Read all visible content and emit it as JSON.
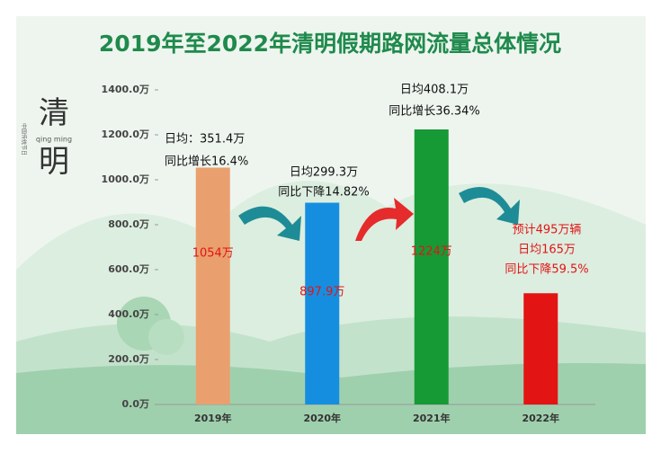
{
  "chart_data": {
    "type": "bar",
    "title": "2019年至2022年清明假期路网流量总体情况",
    "categories": [
      "2019年",
      "2020年",
      "2021年",
      "2022年"
    ],
    "values": [
      1054,
      897.9,
      1224,
      495
    ],
    "value_labels": [
      "1054万",
      "897.9万",
      "1224万",
      null
    ],
    "colors": [
      "#e9a06e",
      "#168ee0",
      "#159a35",
      "#e31414"
    ],
    "ylim": [
      0,
      1400
    ],
    "yticks": [
      {
        "value": 0,
        "label": "0.0万"
      },
      {
        "value": 200,
        "label": "200.0万"
      },
      {
        "value": 400,
        "label": "400.0万"
      },
      {
        "value": 600,
        "label": "600.0万"
      },
      {
        "value": 800,
        "label": "800.0万"
      },
      {
        "value": 1000,
        "label": "1000.0万"
      },
      {
        "value": 1200,
        "label": "1200.0万"
      },
      {
        "value": 1400,
        "label": "1400.0万"
      }
    ],
    "annotations": [
      [
        "日均：351.4万",
        "同比增长16.4%"
      ],
      [
        "日均299.3万",
        "同比下降14.82%"
      ],
      [
        "日均408.1万",
        "同比增长36.34%"
      ],
      [
        "预计495万辆",
        "日均165万",
        "同比下降59.5%"
      ]
    ],
    "badge": {
      "chars": [
        "清",
        "明"
      ],
      "pinyin": "qing ming",
      "caption": "中国传统节日"
    }
  }
}
